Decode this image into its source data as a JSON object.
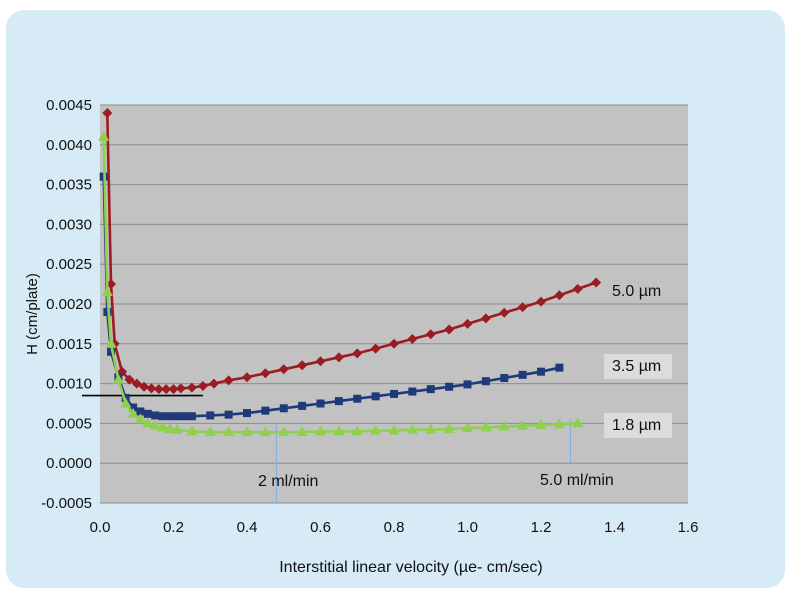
{
  "chart_data": {
    "type": "line",
    "title": "",
    "xlabel": "Interstitial linear velocity (µe- cm/sec)",
    "ylabel": "H (cm/plate)",
    "xlim": [
      0,
      1.6
    ],
    "ylim": [
      -0.0005,
      0.0045
    ],
    "xticks": [
      0.0,
      0.2,
      0.4,
      0.6,
      0.8,
      1.0,
      1.2,
      1.4,
      1.6
    ],
    "xtick_labels": [
      "0.0",
      "0.2",
      "0.4",
      "0.6",
      "0.8",
      "1.0",
      "1.2",
      "1.4",
      "1.6"
    ],
    "yticks": [
      0.0045,
      0.004,
      0.0035,
      0.003,
      0.0025,
      0.002,
      0.0015,
      0.001,
      0.0005,
      0.0,
      -0.0005
    ],
    "ytick_labels": [
      "0.0045",
      "0.0040",
      "0.0035",
      "0.0030",
      "0.0025",
      "0.0020",
      "0.0015",
      "0.0010",
      "0.0005",
      "0.0000",
      "-0.0005"
    ],
    "grid": true,
    "colors": {
      "plot_bg": "#c2c2c2",
      "card_bg": "#d6ebf5",
      "gridline": "#8c8c8c",
      "label_box": "#dcdcdc",
      "marker_line": "#7ab0e0"
    },
    "series": [
      {
        "name": "5.0 µm",
        "color": "#9b1c22",
        "marker": "diamond",
        "x": [
          0.02,
          0.03,
          0.04,
          0.06,
          0.08,
          0.1,
          0.12,
          0.14,
          0.16,
          0.18,
          0.2,
          0.22,
          0.25,
          0.28,
          0.31,
          0.35,
          0.4,
          0.45,
          0.5,
          0.55,
          0.6,
          0.65,
          0.7,
          0.75,
          0.8,
          0.85,
          0.9,
          0.95,
          1.0,
          1.05,
          1.1,
          1.15,
          1.2,
          1.25,
          1.3,
          1.35
        ],
        "y": [
          0.0044,
          0.00225,
          0.0015,
          0.00115,
          0.00105,
          0.001,
          0.00096,
          0.00094,
          0.00093,
          0.00093,
          0.00093,
          0.00094,
          0.00095,
          0.00097,
          0.001,
          0.00104,
          0.00108,
          0.00113,
          0.00118,
          0.00123,
          0.00128,
          0.00133,
          0.00138,
          0.00144,
          0.0015,
          0.00156,
          0.00162,
          0.00168,
          0.00175,
          0.00182,
          0.00189,
          0.00196,
          0.00203,
          0.00211,
          0.00219,
          0.00227
        ]
      },
      {
        "name": "3.5 µm",
        "color": "#1f3a7a",
        "marker": "square",
        "x": [
          0.01,
          0.02,
          0.03,
          0.05,
          0.07,
          0.09,
          0.11,
          0.13,
          0.15,
          0.17,
          0.19,
          0.21,
          0.23,
          0.25,
          0.3,
          0.35,
          0.4,
          0.45,
          0.5,
          0.55,
          0.6,
          0.65,
          0.7,
          0.75,
          0.8,
          0.85,
          0.9,
          0.95,
          1.0,
          1.05,
          1.1,
          1.15,
          1.2,
          1.25
        ],
        "y": [
          0.0036,
          0.0019,
          0.0014,
          0.00108,
          0.00082,
          0.0007,
          0.00065,
          0.00062,
          0.0006,
          0.00059,
          0.00059,
          0.00059,
          0.00059,
          0.00059,
          0.0006,
          0.00061,
          0.00063,
          0.00066,
          0.00069,
          0.00072,
          0.00075,
          0.00078,
          0.00081,
          0.00084,
          0.00087,
          0.0009,
          0.00093,
          0.00096,
          0.00099,
          0.00103,
          0.00107,
          0.00111,
          0.00115,
          0.0012
        ]
      },
      {
        "name": "1.8 µm",
        "color": "#8fd14f",
        "marker": "triangle",
        "x": [
          0.01,
          0.02,
          0.03,
          0.05,
          0.07,
          0.09,
          0.11,
          0.13,
          0.15,
          0.17,
          0.19,
          0.21,
          0.25,
          0.3,
          0.35,
          0.4,
          0.45,
          0.5,
          0.55,
          0.6,
          0.65,
          0.7,
          0.75,
          0.8,
          0.85,
          0.9,
          0.95,
          1.0,
          1.05,
          1.1,
          1.15,
          1.2,
          1.25,
          1.3
        ],
        "y": [
          0.0041,
          0.00215,
          0.0015,
          0.00105,
          0.00075,
          0.00062,
          0.00055,
          0.0005,
          0.00047,
          0.00045,
          0.00043,
          0.00042,
          0.0004,
          0.00039,
          0.00039,
          0.00039,
          0.00039,
          0.00039,
          0.00039,
          0.0004,
          0.0004,
          0.0004,
          0.00041,
          0.00041,
          0.00042,
          0.00042,
          0.00043,
          0.00044,
          0.00045,
          0.00046,
          0.00047,
          0.00048,
          0.00049,
          0.0005
        ]
      }
    ],
    "annotations": {
      "flow_low": "2 ml/min",
      "flow_high": "5.0 ml/min",
      "label_5": "5.0 µm",
      "label_35": "3.5 µm",
      "label_18": "1.8 µm",
      "flow_low_x": 0.48,
      "flow_high_x": 1.28,
      "hline_y": 0.00085,
      "hline_xmax": 0.28
    }
  }
}
